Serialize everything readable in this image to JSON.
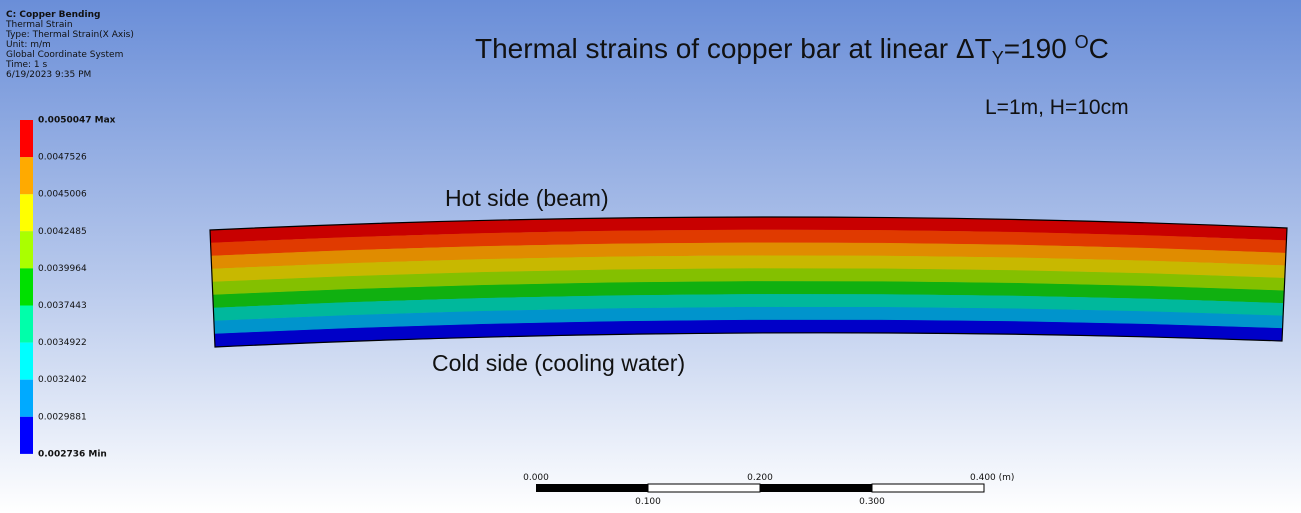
{
  "header": {
    "lines": [
      "C: Copper Bending",
      "Thermal Strain",
      "Type: Thermal Strain(X Axis)",
      "Unit: m/m",
      "Global Coordinate System",
      "Time: 1 s",
      "6/19/2023 9:35 PM"
    ]
  },
  "legend": {
    "labels": [
      "0.0050047 Max",
      "0.0047526",
      "0.0045006",
      "0.0042485",
      "0.0039964",
      "0.0037443",
      "0.0034922",
      "0.0032402",
      "0.0029881",
      "0.002736 Min"
    ]
  },
  "title": {
    "text": "Thermal strains of copper bar at linear ΔT",
    "sub": "Y",
    "mid": "=190 ",
    "sup": "O",
    "end": "C"
  },
  "subtitle": "L=1m, H=10cm",
  "annotations": [
    "Hot side (beam)",
    "Cold side (cooling water)"
  ],
  "scale_bar": {
    "top_labels": [
      "0.000",
      "0.200",
      "0.400 (m)"
    ],
    "bottom_labels": [
      "0.100",
      "0.300"
    ]
  }
}
